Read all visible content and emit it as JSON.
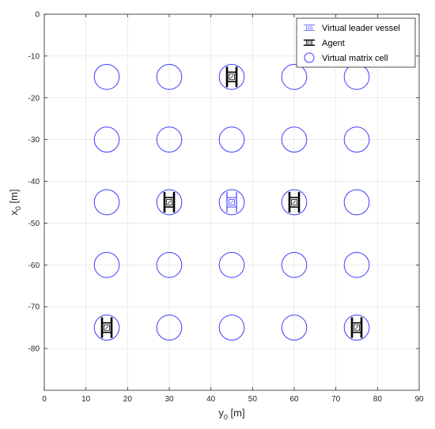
{
  "chart_data": {
    "type": "scatter",
    "xlabel_main": "y",
    "xlabel_sub": "0",
    "xlabel_unit": " [m]",
    "ylabel_main": "x",
    "ylabel_sub": "0",
    "ylabel_unit": " [m]",
    "xlim": [
      0,
      90
    ],
    "ylim": [
      -90,
      0
    ],
    "xticks": [
      0,
      10,
      20,
      30,
      40,
      50,
      60,
      70,
      80,
      90
    ],
    "yticks": [
      0,
      -10,
      -20,
      -30,
      -40,
      -50,
      -60,
      -70,
      -80
    ],
    "grid": true,
    "legend_position": "top-right",
    "colors": {
      "cell": "#3d3dff",
      "leader": "#3d3dff",
      "agent": "#000000",
      "grid": "#e6e6e6",
      "axes": "#262626"
    },
    "series": [
      {
        "name": "Virtual leader vessel",
        "marker": "vessel-outline",
        "points": [
          {
            "y0": 45,
            "x0": -45
          }
        ]
      },
      {
        "name": "Agent",
        "marker": "vessel-solid",
        "points": [
          {
            "y0": 45,
            "x0": -15
          },
          {
            "y0": 30,
            "x0": -45
          },
          {
            "y0": 60,
            "x0": -45
          },
          {
            "y0": 15,
            "x0": -75
          },
          {
            "y0": 75,
            "x0": -75
          }
        ]
      },
      {
        "name": "Virtual matrix cell",
        "marker": "circle",
        "radius": 3,
        "points": [
          {
            "y0": 15,
            "x0": -15
          },
          {
            "y0": 30,
            "x0": -15
          },
          {
            "y0": 45,
            "x0": -15
          },
          {
            "y0": 60,
            "x0": -15
          },
          {
            "y0": 75,
            "x0": -15
          },
          {
            "y0": 15,
            "x0": -30
          },
          {
            "y0": 30,
            "x0": -30
          },
          {
            "y0": 45,
            "x0": -30
          },
          {
            "y0": 60,
            "x0": -30
          },
          {
            "y0": 75,
            "x0": -30
          },
          {
            "y0": 15,
            "x0": -45
          },
          {
            "y0": 30,
            "x0": -45
          },
          {
            "y0": 45,
            "x0": -45
          },
          {
            "y0": 60,
            "x0": -45
          },
          {
            "y0": 75,
            "x0": -45
          },
          {
            "y0": 15,
            "x0": -60
          },
          {
            "y0": 30,
            "x0": -60
          },
          {
            "y0": 45,
            "x0": -60
          },
          {
            "y0": 60,
            "x0": -60
          },
          {
            "y0": 75,
            "x0": -60
          },
          {
            "y0": 15,
            "x0": -75
          },
          {
            "y0": 30,
            "x0": -75
          },
          {
            "y0": 45,
            "x0": -75
          },
          {
            "y0": 60,
            "x0": -75
          },
          {
            "y0": 75,
            "x0": -75
          }
        ]
      }
    ]
  }
}
